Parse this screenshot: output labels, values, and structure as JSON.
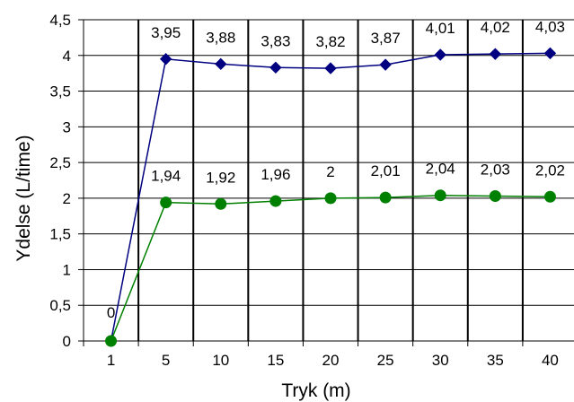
{
  "chart_data": {
    "type": "line",
    "title": "",
    "xlabel": "Tryk (m)",
    "ylabel": "Ydelse (L/time)",
    "categories": [
      "1",
      "5",
      "10",
      "15",
      "20",
      "25",
      "30",
      "35",
      "40"
    ],
    "yticks": [
      "0",
      "0,5",
      "1",
      "1,5",
      "2",
      "2,5",
      "3",
      "3,5",
      "4",
      "4,5"
    ],
    "ylim": [
      0,
      4.5
    ],
    "grid": "horizontal and vertical",
    "legend": "none",
    "series": [
      {
        "marker": "diamond",
        "color": "#000080",
        "values": [
          0,
          3.95,
          3.88,
          3.83,
          3.82,
          3.87,
          4.01,
          4.02,
          4.03
        ],
        "labels": [
          "",
          "3,95",
          "3,88",
          "3,83",
          "3,82",
          "3,87",
          "4,01",
          "4,02",
          "4,03"
        ]
      },
      {
        "marker": "circle",
        "color": "#008000",
        "values": [
          0,
          1.94,
          1.92,
          1.96,
          2,
          2.01,
          2.04,
          2.03,
          2.02
        ],
        "labels": [
          "0",
          "1,94",
          "1,92",
          "1,96",
          "2",
          "2,01",
          "2,04",
          "2,03",
          "2,02"
        ]
      }
    ]
  }
}
